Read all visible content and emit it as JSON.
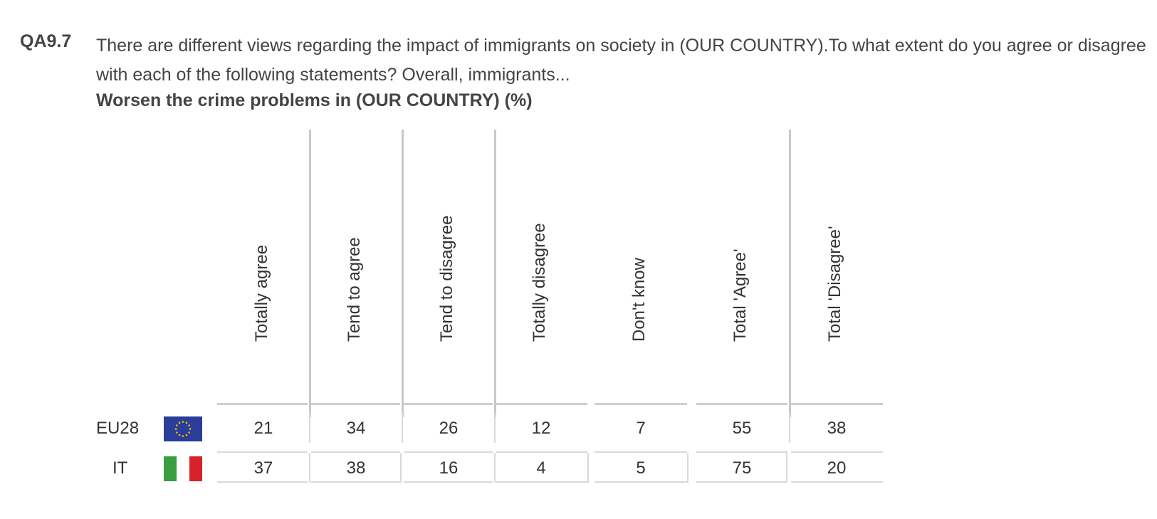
{
  "question": {
    "code": "QA9.7",
    "text": "There are different views regarding the impact of immigrants on society in (OUR COUNTRY).To what extent do you agree or disagree with each of the following statements? Overall, immigrants...",
    "subtitle": "Worsen the crime problems in (OUR COUNTRY) (%)"
  },
  "chart_data": {
    "type": "table",
    "columns": [
      "Totally agree",
      "Tend to agree",
      "Tend to disagree",
      "Totally disagree",
      "Don't know",
      "Total 'Agree'",
      "Total 'Disagree'"
    ],
    "rows": [
      {
        "label": "EU28",
        "flag": "eu-flag",
        "values": [
          21,
          34,
          26,
          12,
          7,
          55,
          38
        ]
      },
      {
        "label": "IT",
        "flag": "italy-flag",
        "values": [
          37,
          38,
          16,
          4,
          5,
          75,
          20
        ]
      }
    ]
  },
  "colors": {
    "eu_blue": "#2a3d9a",
    "eu_star": "#f2c500",
    "it_green": "#3a9d3e",
    "it_white": "#ffffff",
    "it_red": "#d8222b"
  }
}
